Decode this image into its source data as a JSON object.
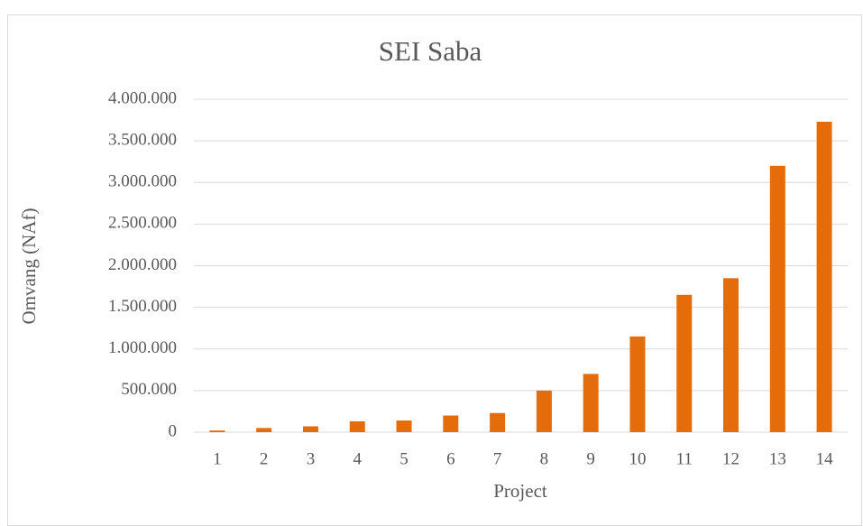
{
  "chart_data": {
    "type": "bar",
    "title": "SEI Saba",
    "x_label": "Project",
    "y_label": "Omvang (NAf)",
    "categories": [
      "1",
      "2",
      "3",
      "4",
      "5",
      "6",
      "7",
      "8",
      "9",
      "10",
      "11",
      "12",
      "13",
      "14"
    ],
    "values": [
      20000,
      50000,
      70000,
      130000,
      140000,
      200000,
      230000,
      500000,
      700000,
      1150000,
      1650000,
      1850000,
      3200000,
      3730000
    ],
    "color": "#e46c0a",
    "ylim": [
      0,
      4000000
    ],
    "yticks": [
      0,
      {
        "value": 500000,
        "label": "500.000"
      },
      {
        "value": 1000000,
        "label": "1.000.000"
      },
      {
        "value": 1500000,
        "label": "1.500.000"
      },
      {
        "value": 2000000,
        "label": "2.000.000"
      },
      {
        "value": 2500000,
        "label": "2.500.000"
      },
      {
        "value": 3000000,
        "label": "3.000.000"
      },
      {
        "value": 3500000,
        "label": "3.500.000"
      },
      {
        "value": 4000000,
        "label": "4.000.000"
      }
    ],
    "grid": true
  }
}
